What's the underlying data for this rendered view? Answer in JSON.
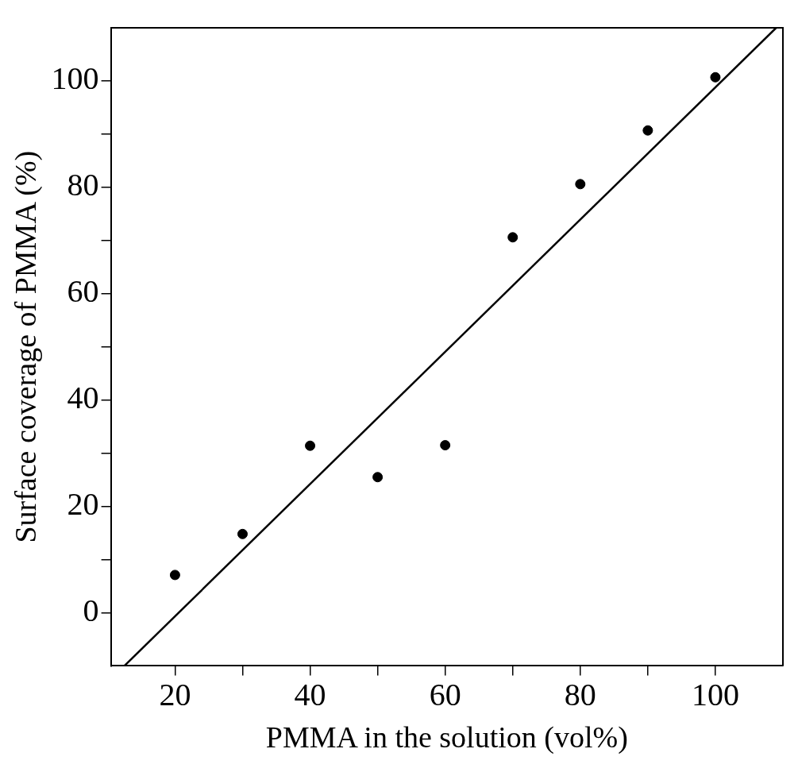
{
  "chart_data": {
    "type": "scatter",
    "xlabel": "PMMA in the solution (vol%)",
    "ylabel": "Surface coverage of PMMA (%)",
    "x": [
      20,
      30,
      40,
      50,
      60,
      70,
      80,
      90,
      100
    ],
    "series": [
      {
        "type": "scatter",
        "color": "#000000",
        "marker": "circle",
        "values": [
          7.1,
          14.8,
          31.4,
          25.5,
          31.5,
          70.6,
          80.6,
          90.7,
          100.7
        ]
      },
      {
        "type": "line",
        "color": "#000000",
        "marker": "none",
        "x": [
          12.5,
          109
        ],
        "values": [
          -10,
          110
        ]
      }
    ],
    "grid": false,
    "legend": false,
    "xlim": [
      10.5,
      110
    ],
    "ylim": [
      -10,
      110
    ],
    "xticks": [
      20,
      {
        "value": 30,
        "label": null
      },
      40,
      {
        "value": 50,
        "label": null
      },
      60,
      {
        "value": 70,
        "label": null
      },
      80,
      {
        "value": 90,
        "label": null
      },
      100
    ],
    "yticks": [
      0,
      {
        "value": 10,
        "label": null
      },
      20,
      {
        "value": 30,
        "label": null
      },
      40,
      {
        "value": 50,
        "label": null
      },
      60,
      {
        "value": 70,
        "label": null
      },
      80,
      {
        "value": 90,
        "label": null
      },
      100
    ]
  }
}
